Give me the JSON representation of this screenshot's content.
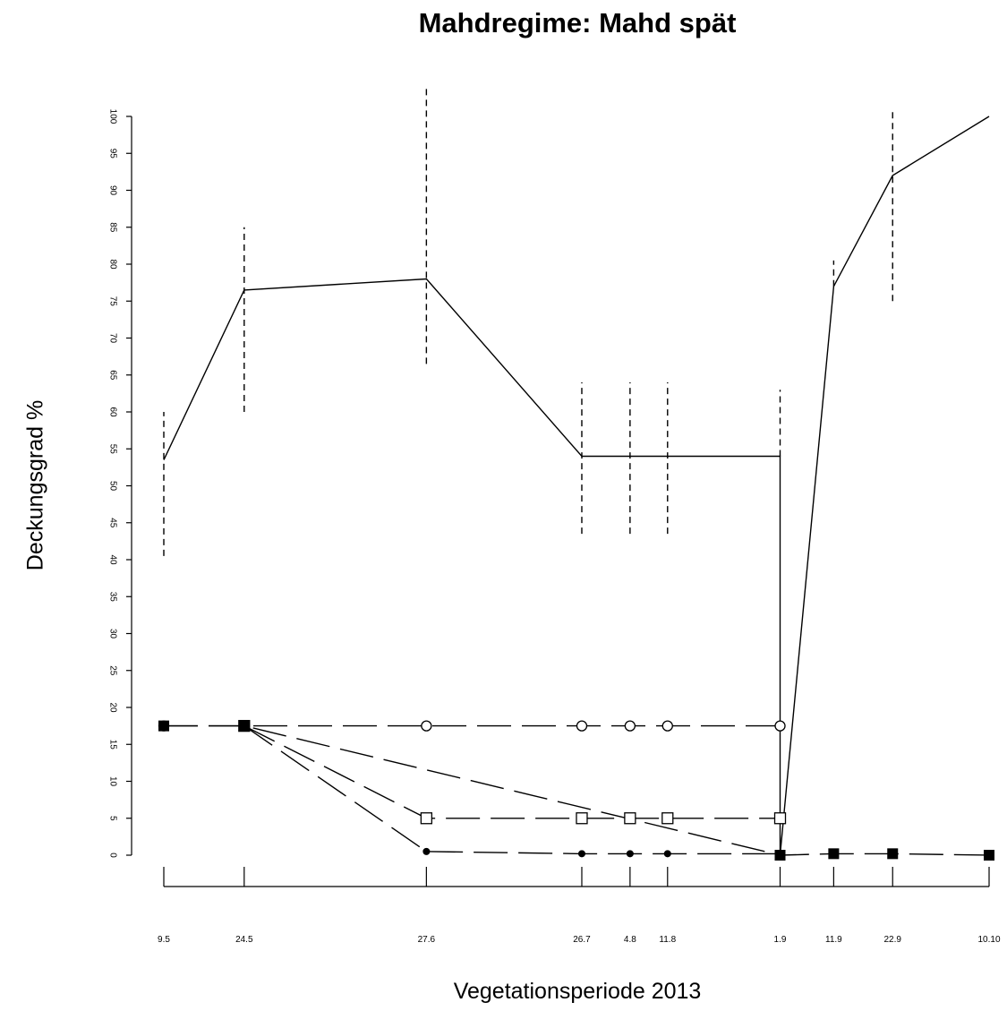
{
  "chart_data": {
    "type": "line",
    "title": "Mahdregime: Mahd spät",
    "xlabel": "Vegetationsperiode 2013",
    "ylabel": "Deckungsgrad %",
    "ylim": [
      0,
      100
    ],
    "yticks": [
      0,
      5,
      10,
      15,
      20,
      25,
      30,
      35,
      40,
      45,
      50,
      55,
      60,
      65,
      70,
      75,
      80,
      85,
      90,
      95,
      100
    ],
    "x_dates": [
      "2013-05-09",
      "2013-05-24",
      "2013-06-27",
      "2013-07-26",
      "2013-08-04",
      "2013-08-11",
      "2013-09-01",
      "2013-09-11",
      "2013-09-22",
      "2013-10-10"
    ],
    "x_tick_labels": [
      "9.5",
      "24.5",
      "27.6",
      "26.7",
      "4.8",
      "11.8",
      "1.9",
      "11.9",
      "22.9",
      "10.10"
    ],
    "grid": false,
    "legend": "none",
    "series": [
      {
        "line": "solid",
        "marker": "none",
        "x_index": [
          0,
          1,
          2,
          3,
          4,
          5,
          6,
          6,
          7,
          8,
          9
        ],
        "values": [
          53.5,
          76.5,
          78,
          54,
          54,
          54,
          54,
          0,
          77,
          92,
          100
        ],
        "error_low": [
          40.5,
          60,
          66.5,
          43.5,
          43.5,
          43.5,
          null,
          null,
          null,
          75,
          null
        ],
        "error_high": [
          60,
          85,
          104,
          64,
          64,
          64,
          63,
          null,
          80.5,
          101,
          null
        ]
      },
      {
        "line": "dashed",
        "marker": "open-circle",
        "x_index": [
          0,
          1,
          2,
          3,
          4,
          5,
          6
        ],
        "values": [
          17.5,
          17.5,
          17.5,
          17.5,
          17.5,
          17.5,
          17.5
        ]
      },
      {
        "line": "dashed",
        "marker": "open-square",
        "x_index": [
          1,
          2,
          3,
          4,
          5,
          6
        ],
        "values": [
          17.5,
          5,
          5,
          5,
          5,
          5
        ]
      },
      {
        "line": "dashed",
        "marker": "filled-circle",
        "x_index": [
          1,
          2,
          3,
          4,
          5,
          6
        ],
        "values": [
          17.5,
          0.5,
          0.2,
          0.2,
          0.2,
          0.2
        ]
      },
      {
        "line": "dashed",
        "marker": "filled-square",
        "x_index": [
          0,
          1,
          6,
          7,
          8,
          9
        ],
        "values": [
          17.5,
          17.5,
          0,
          0.2,
          0.2,
          0
        ]
      }
    ]
  }
}
